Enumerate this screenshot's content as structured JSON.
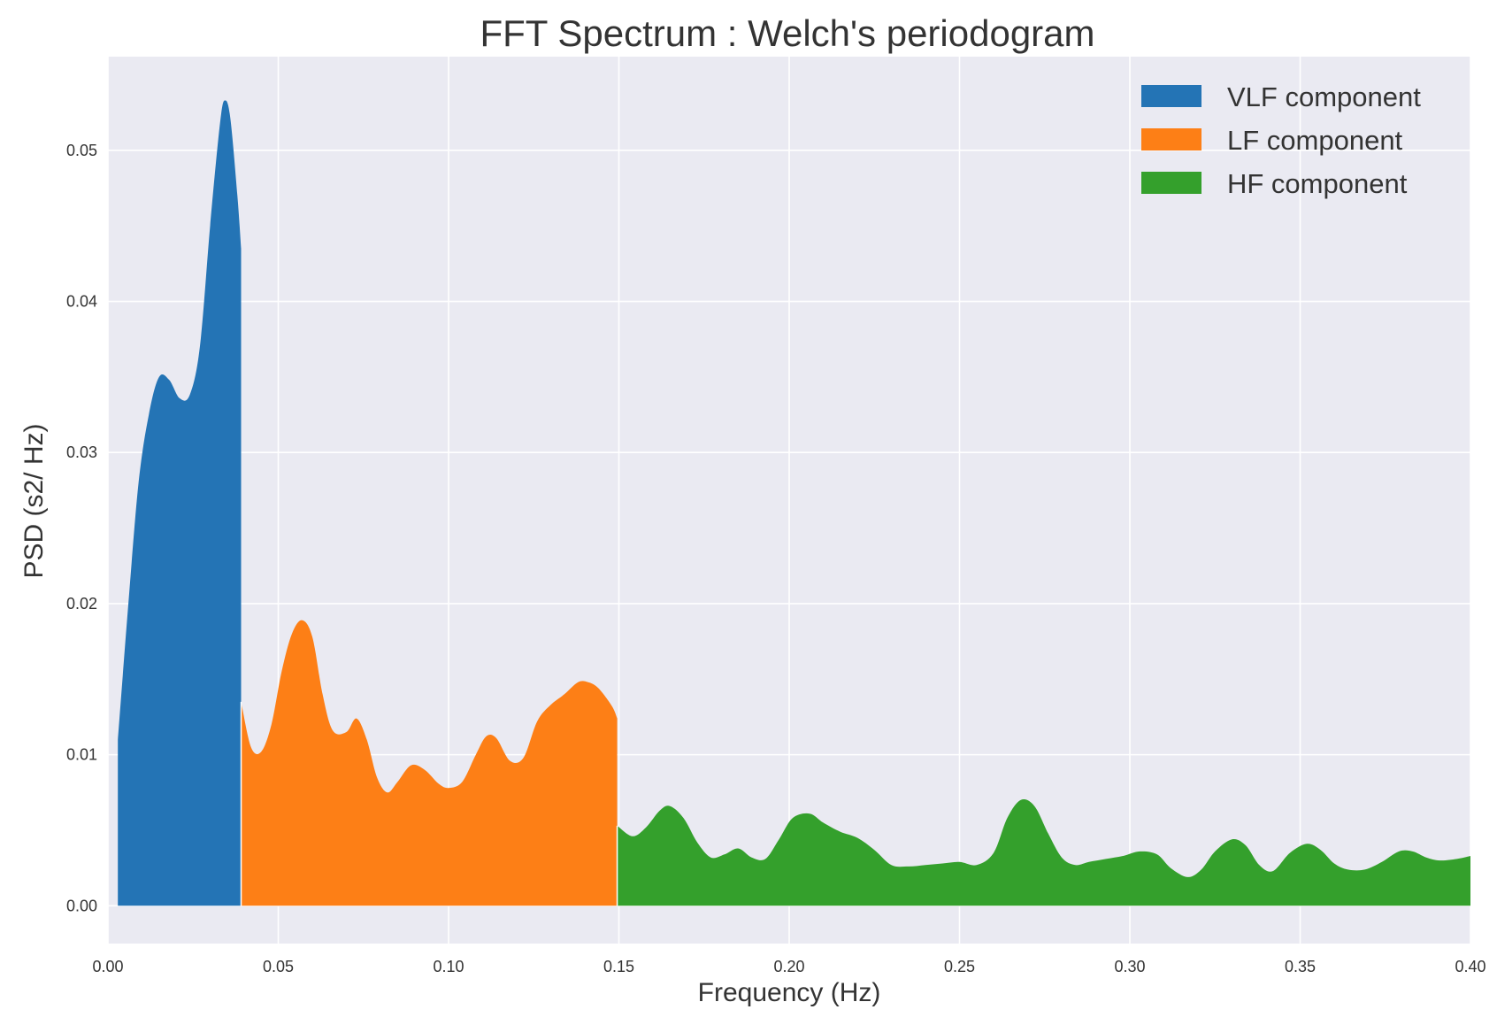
{
  "chart_data": {
    "type": "area",
    "title": "FFT Spectrum : Welch's periodogram",
    "xlabel": "Frequency (Hz)",
    "ylabel": "PSD (s2/ Hz)",
    "xlim": [
      0.0,
      0.4
    ],
    "ylim": [
      -0.0025,
      0.0562
    ],
    "grid": true,
    "legend_position": "top-right",
    "x_ticks": [
      0.0,
      0.05,
      0.1,
      0.15,
      0.2,
      0.25,
      0.3,
      0.35,
      0.4
    ],
    "x_tick_labels": [
      "0.00",
      "0.05",
      "0.10",
      "0.15",
      "0.20",
      "0.25",
      "0.30",
      "0.35",
      "0.40"
    ],
    "y_ticks": [
      0.0,
      0.01,
      0.02,
      0.03,
      0.04,
      0.05
    ],
    "y_tick_labels": [
      "0.00",
      "0.01",
      "0.02",
      "0.03",
      "0.04",
      "0.05"
    ],
    "series": [
      {
        "name": "VLF component",
        "color": "#2474b5",
        "points": [
          [
            0.0029,
            0.011
          ],
          [
            0.006,
            0.02
          ],
          [
            0.009,
            0.028
          ],
          [
            0.012,
            0.0325
          ],
          [
            0.015,
            0.035
          ],
          [
            0.018,
            0.0348
          ],
          [
            0.021,
            0.0336
          ],
          [
            0.024,
            0.0338
          ],
          [
            0.027,
            0.037
          ],
          [
            0.03,
            0.045
          ],
          [
            0.033,
            0.052
          ],
          [
            0.0345,
            0.0533
          ],
          [
            0.036,
            0.052
          ],
          [
            0.038,
            0.047
          ],
          [
            0.0391,
            0.0435
          ]
        ]
      },
      {
        "name": "LF component",
        "color": "#fd7f16",
        "points": [
          [
            0.0391,
            0.0135
          ],
          [
            0.042,
            0.0105
          ],
          [
            0.045,
            0.0102
          ],
          [
            0.048,
            0.012
          ],
          [
            0.051,
            0.0155
          ],
          [
            0.054,
            0.018
          ],
          [
            0.057,
            0.0189
          ],
          [
            0.06,
            0.0178
          ],
          [
            0.063,
            0.014
          ],
          [
            0.066,
            0.0116
          ],
          [
            0.07,
            0.0115
          ],
          [
            0.073,
            0.0124
          ],
          [
            0.076,
            0.011
          ],
          [
            0.079,
            0.0085
          ],
          [
            0.082,
            0.0075
          ],
          [
            0.085,
            0.0082
          ],
          [
            0.089,
            0.0093
          ],
          [
            0.093,
            0.009
          ],
          [
            0.097,
            0.0081
          ],
          [
            0.1,
            0.0078
          ],
          [
            0.104,
            0.0082
          ],
          [
            0.108,
            0.01
          ],
          [
            0.111,
            0.0112
          ],
          [
            0.114,
            0.0111
          ],
          [
            0.118,
            0.0096
          ],
          [
            0.122,
            0.0098
          ],
          [
            0.126,
            0.0122
          ],
          [
            0.13,
            0.0133
          ],
          [
            0.134,
            0.014
          ],
          [
            0.138,
            0.0148
          ],
          [
            0.141,
            0.0148
          ],
          [
            0.144,
            0.0144
          ],
          [
            0.148,
            0.0132
          ],
          [
            0.1495,
            0.0124
          ]
        ]
      },
      {
        "name": "HF component",
        "color": "#34a02c",
        "points": [
          [
            0.1495,
            0.0053
          ],
          [
            0.154,
            0.0046
          ],
          [
            0.158,
            0.0052
          ],
          [
            0.162,
            0.0063
          ],
          [
            0.165,
            0.0066
          ],
          [
            0.169,
            0.0058
          ],
          [
            0.173,
            0.0042
          ],
          [
            0.177,
            0.0032
          ],
          [
            0.181,
            0.0034
          ],
          [
            0.185,
            0.0038
          ],
          [
            0.189,
            0.0032
          ],
          [
            0.193,
            0.0031
          ],
          [
            0.197,
            0.0044
          ],
          [
            0.201,
            0.0058
          ],
          [
            0.206,
            0.0061
          ],
          [
            0.21,
            0.0055
          ],
          [
            0.215,
            0.0049
          ],
          [
            0.22,
            0.0045
          ],
          [
            0.225,
            0.0037
          ],
          [
            0.23,
            0.0027
          ],
          [
            0.235,
            0.0026
          ],
          [
            0.24,
            0.0027
          ],
          [
            0.245,
            0.0028
          ],
          [
            0.25,
            0.0029
          ],
          [
            0.255,
            0.0027
          ],
          [
            0.26,
            0.0035
          ],
          [
            0.264,
            0.0058
          ],
          [
            0.268,
            0.007
          ],
          [
            0.272,
            0.0066
          ],
          [
            0.276,
            0.0048
          ],
          [
            0.28,
            0.0032
          ],
          [
            0.284,
            0.0027
          ],
          [
            0.288,
            0.0029
          ],
          [
            0.293,
            0.0031
          ],
          [
            0.298,
            0.0033
          ],
          [
            0.303,
            0.0036
          ],
          [
            0.308,
            0.0034
          ],
          [
            0.312,
            0.0025
          ],
          [
            0.317,
            0.0019
          ],
          [
            0.321,
            0.0024
          ],
          [
            0.325,
            0.0036
          ],
          [
            0.33,
            0.0044
          ],
          [
            0.334,
            0.004
          ],
          [
            0.338,
            0.0027
          ],
          [
            0.342,
            0.0023
          ],
          [
            0.347,
            0.0035
          ],
          [
            0.352,
            0.0041
          ],
          [
            0.356,
            0.0037
          ],
          [
            0.36,
            0.0028
          ],
          [
            0.364,
            0.0024
          ],
          [
            0.369,
            0.0024
          ],
          [
            0.374,
            0.0029
          ],
          [
            0.379,
            0.0036
          ],
          [
            0.383,
            0.0036
          ],
          [
            0.387,
            0.0032
          ],
          [
            0.391,
            0.003
          ],
          [
            0.396,
            0.0031
          ],
          [
            0.4,
            0.0033
          ]
        ]
      }
    ]
  }
}
